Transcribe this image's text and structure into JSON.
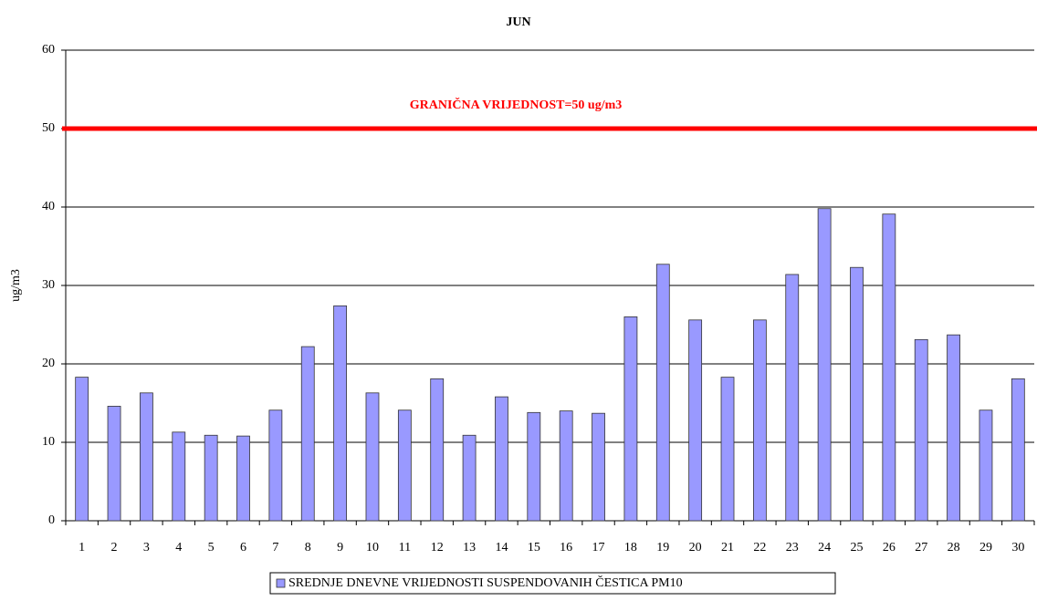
{
  "chart_data": {
    "type": "bar",
    "title": "JUN",
    "y_label": "ug/m3",
    "categories": [
      "1",
      "2",
      "3",
      "4",
      "5",
      "6",
      "7",
      "8",
      "9",
      "10",
      "11",
      "12",
      "13",
      "14",
      "15",
      "16",
      "17",
      "18",
      "19",
      "20",
      "21",
      "22",
      "23",
      "24",
      "25",
      "26",
      "27",
      "28",
      "29",
      "30"
    ],
    "series": [
      {
        "name": "SREDNJE DNEVNE VRIJEDNOSTI SUSPENDOVANIH ČESTICA PM10",
        "color": "#9999ff",
        "values": [
          18.3,
          14.6,
          16.3,
          11.3,
          10.9,
          10.8,
          14.1,
          22.2,
          27.4,
          16.3,
          14.1,
          18.1,
          10.9,
          15.8,
          13.8,
          14.0,
          13.7,
          26.0,
          32.7,
          25.6,
          18.3,
          25.6,
          31.4,
          39.8,
          32.3,
          39.1,
          23.1,
          23.7,
          14.1,
          18.1
        ]
      }
    ],
    "ylim": [
      0,
      60
    ],
    "yticks": [
      0,
      10,
      20,
      30,
      40,
      50,
      60
    ],
    "grid": true,
    "legend": "bottom",
    "threshold": {
      "value": 50,
      "label": "GRANIČNA VRIJEDNOST=50 ug/m3",
      "color": "#ff0000"
    }
  }
}
